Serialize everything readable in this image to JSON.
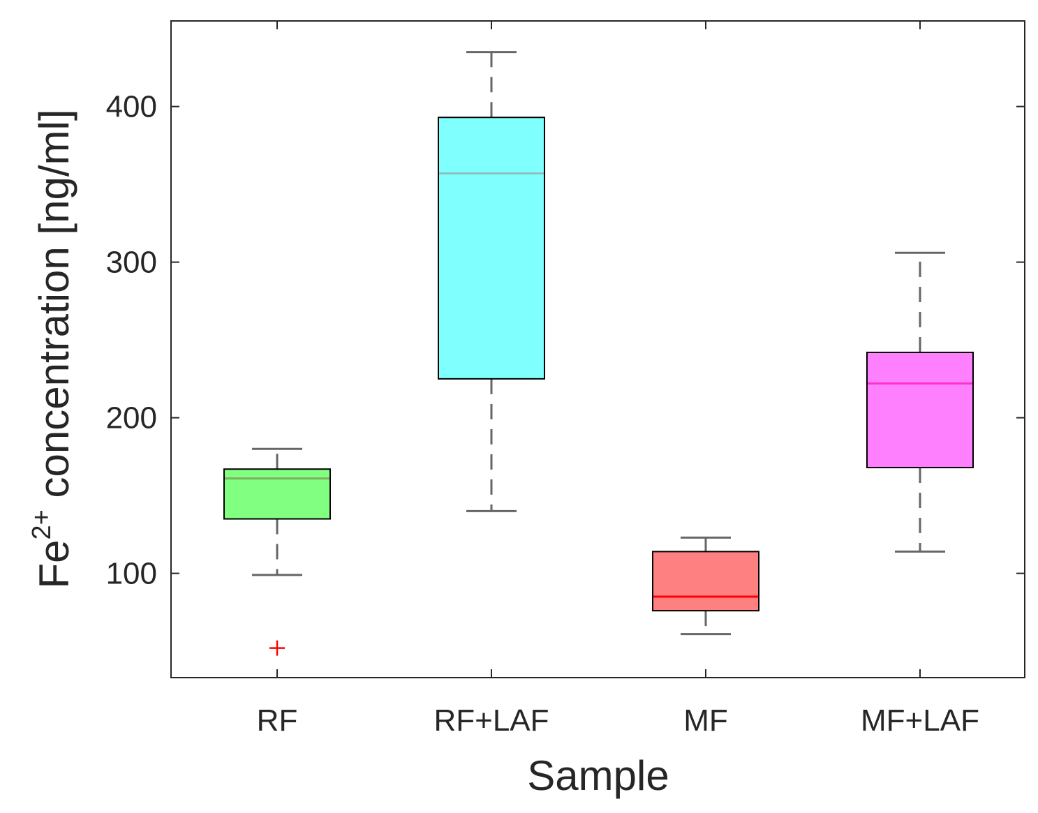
{
  "chart_data": {
    "type": "box",
    "xlabel": "Sample",
    "ylabel": {
      "base": "Fe",
      "superscript": "2+",
      "rest": " concentration [ng/ml]"
    },
    "ylim": [
      33,
      455
    ],
    "yticks": [
      100,
      200,
      300,
      400
    ],
    "categories": [
      "RF",
      "RF+LAF",
      "MF",
      "MF+LAF"
    ],
    "boxes": [
      {
        "name": "RF",
        "whisker_low": 99,
        "q1": 135,
        "median": 161,
        "q3": 167,
        "whisker_high": 180,
        "outliers": [
          52
        ],
        "fill": "#80ff80",
        "median_color": "#7fb060"
      },
      {
        "name": "RF+LAF",
        "whisker_low": 140,
        "q1": 225,
        "median": 357,
        "q3": 393,
        "whisker_high": 435,
        "outliers": [],
        "fill": "#80ffff",
        "median_color": "#8fbfbf"
      },
      {
        "name": "MF",
        "whisker_low": 61,
        "q1": 76,
        "median": 85,
        "q3": 114,
        "whisker_high": 123,
        "outliers": [],
        "fill": "#ff8080",
        "median_color": "#ff0000"
      },
      {
        "name": "MF+LAF",
        "whisker_low": 114,
        "q1": 168,
        "median": 222,
        "q3": 242,
        "whisker_high": 306,
        "outliers": [],
        "fill": "#ff80ff",
        "median_color": "#ff33cc"
      }
    ],
    "outlier_color": "#ff0000",
    "whisker_color": "#666666",
    "grid": false
  }
}
